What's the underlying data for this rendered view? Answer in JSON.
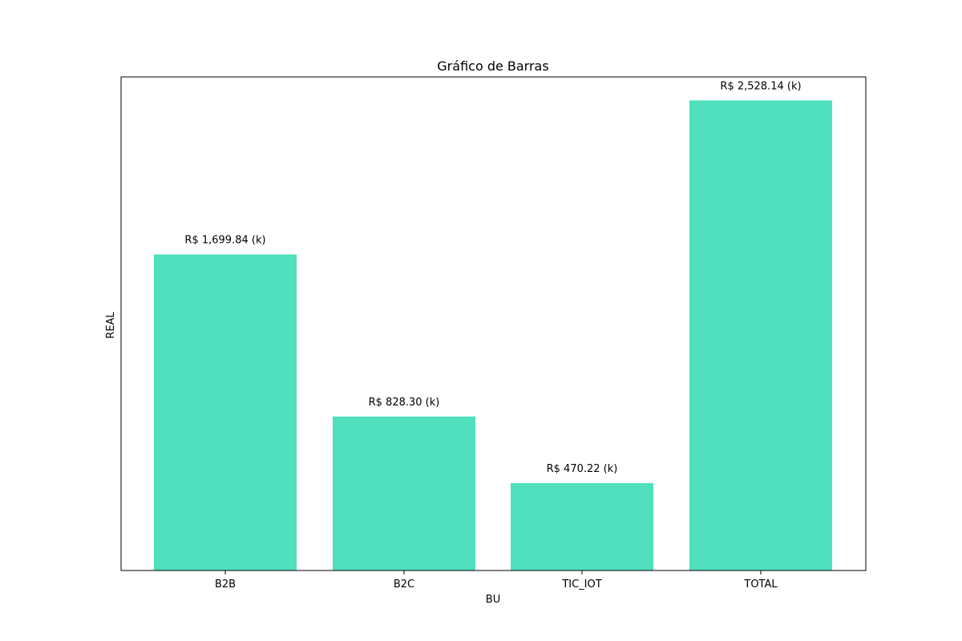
{
  "chart_data": {
    "type": "bar",
    "title": "Gráfico de Barras",
    "xlabel": "BU",
    "ylabel": "REAL",
    "categories": [
      "B2B",
      "B2C",
      "TIC_IOT",
      "TOTAL"
    ],
    "values": [
      1699.84,
      828.3,
      470.22,
      2528.14
    ],
    "value_labels": [
      "R$ 1,699.84 (k)",
      "R$ 828.30 (k)",
      "R$ 470.22 (k)",
      "R$ 2,528.14 (k)"
    ],
    "ylim": [
      0,
      2654.55
    ],
    "y_ticks_visible": false,
    "grid": false,
    "legend": "none",
    "bar_color": "#50e0bd"
  }
}
